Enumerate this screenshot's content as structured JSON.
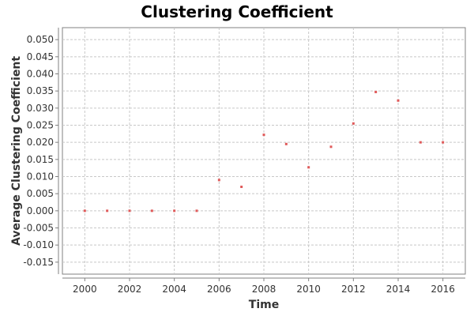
{
  "chart_data": {
    "type": "scatter",
    "title": "Clustering Coefficient",
    "xlabel": "Time",
    "ylabel": "Average Clustering Coefficient",
    "xlim": [
      1999,
      2017
    ],
    "ylim": [
      -0.0185,
      0.0535
    ],
    "xticks": [
      2000,
      2002,
      2004,
      2006,
      2008,
      2010,
      2012,
      2014,
      2016
    ],
    "xtick_labels": [
      "2000",
      "2002",
      "2004",
      "2006",
      "2008",
      "2010",
      "2012",
      "2014",
      "2016"
    ],
    "yticks": [
      -0.015,
      -0.01,
      -0.005,
      0.0,
      0.005,
      0.01,
      0.015,
      0.02,
      0.025,
      0.03,
      0.035,
      0.04,
      0.045,
      0.05
    ],
    "ytick_labels": [
      "-0.015",
      "-0.010",
      "-0.005",
      "0.000",
      "0.005",
      "0.010",
      "0.015",
      "0.020",
      "0.025",
      "0.030",
      "0.035",
      "0.040",
      "0.045",
      "0.050"
    ],
    "grid": true,
    "marker_color": "#e05a5a",
    "x": [
      2000,
      2001,
      2002,
      2003,
      2004,
      2005,
      2006,
      2007,
      2008,
      2009,
      2010,
      2011,
      2012,
      2013,
      2014,
      2015,
      2016
    ],
    "y": [
      0.0,
      0.0,
      0.0,
      0.0,
      0.0,
      0.0,
      0.009,
      0.007,
      0.0222,
      0.0195,
      0.0127,
      0.0187,
      0.0255,
      0.0347,
      0.0322,
      0.02,
      0.02
    ]
  }
}
